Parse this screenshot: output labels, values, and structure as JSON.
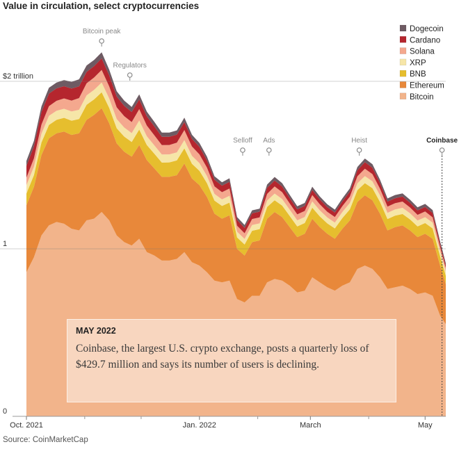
{
  "title": "Value in circulation, select cryptocurrencies",
  "source": "Source: CoinMarketCap",
  "callout": {
    "date": "MAY 2022",
    "text": "Coinbase, the largest U.S. crypto exchange, posts a quarterly loss of $429.7 million and says its number of users is declining."
  },
  "chart_data": {
    "type": "area",
    "stacked": true,
    "title": "Value in circulation, select cryptocurrencies",
    "ylabel": "",
    "y_unit": "trillion dollars",
    "ylim": [
      0,
      2.4
    ],
    "y_ticks": [
      {
        "value": 0,
        "label": "0"
      },
      {
        "value": 1,
        "label": "1"
      },
      {
        "value": 2,
        "label": "$2 trillion"
      }
    ],
    "x_ticks": [
      {
        "value": "2021-10-01",
        "label": "Oct. 2021"
      },
      {
        "value": "2022-01-01",
        "label": "Jan. 2022"
      },
      {
        "value": "2022-03-01",
        "label": "March"
      },
      {
        "value": "2022-05-01",
        "label": "May"
      }
    ],
    "x_minor_ticks": [
      "2021-11-01",
      "2021-12-01",
      "2022-02-01",
      "2022-04-01"
    ],
    "xlim": [
      "2021-10-01",
      "2022-05-12"
    ],
    "x": [
      "2021-10-01",
      "2021-10-05",
      "2021-10-09",
      "2021-10-13",
      "2021-10-17",
      "2021-10-21",
      "2021-10-25",
      "2021-10-29",
      "2021-11-02",
      "2021-11-06",
      "2021-11-10",
      "2021-11-14",
      "2021-11-18",
      "2021-11-22",
      "2021-11-26",
      "2021-11-30",
      "2021-12-04",
      "2021-12-08",
      "2021-12-12",
      "2021-12-16",
      "2021-12-20",
      "2021-12-24",
      "2021-12-28",
      "2022-01-01",
      "2022-01-05",
      "2022-01-09",
      "2022-01-13",
      "2022-01-17",
      "2022-01-21",
      "2022-01-25",
      "2022-01-29",
      "2022-02-02",
      "2022-02-06",
      "2022-02-10",
      "2022-02-14",
      "2022-02-18",
      "2022-02-22",
      "2022-02-26",
      "2022-03-02",
      "2022-03-06",
      "2022-03-10",
      "2022-03-14",
      "2022-03-18",
      "2022-03-22",
      "2022-03-26",
      "2022-03-30",
      "2022-04-03",
      "2022-04-07",
      "2022-04-11",
      "2022-04-15",
      "2022-04-19",
      "2022-04-23",
      "2022-04-27",
      "2022-05-01",
      "2022-05-05",
      "2022-05-09",
      "2022-05-12"
    ],
    "series": [
      {
        "name": "Bitcoin",
        "color": "#f2b48b",
        "values": [
          0.86,
          0.95,
          1.08,
          1.14,
          1.16,
          1.15,
          1.12,
          1.11,
          1.17,
          1.18,
          1.22,
          1.17,
          1.08,
          1.04,
          1.02,
          1.06,
          0.98,
          0.96,
          0.93,
          0.93,
          0.94,
          0.98,
          0.92,
          0.9,
          0.86,
          0.81,
          0.8,
          0.81,
          0.7,
          0.68,
          0.72,
          0.72,
          0.8,
          0.82,
          0.81,
          0.78,
          0.74,
          0.75,
          0.83,
          0.8,
          0.77,
          0.75,
          0.78,
          0.8,
          0.88,
          0.9,
          0.88,
          0.83,
          0.76,
          0.77,
          0.78,
          0.76,
          0.73,
          0.74,
          0.72,
          0.6,
          0.55
        ]
      },
      {
        "name": "Ethereum",
        "color": "#e8883a",
        "values": [
          0.4,
          0.42,
          0.48,
          0.52,
          0.53,
          0.55,
          0.56,
          0.58,
          0.6,
          0.62,
          0.62,
          0.58,
          0.55,
          0.54,
          0.53,
          0.56,
          0.55,
          0.52,
          0.5,
          0.5,
          0.5,
          0.53,
          0.5,
          0.48,
          0.45,
          0.4,
          0.38,
          0.39,
          0.3,
          0.28,
          0.32,
          0.33,
          0.38,
          0.4,
          0.38,
          0.35,
          0.33,
          0.34,
          0.35,
          0.33,
          0.32,
          0.31,
          0.34,
          0.37,
          0.4,
          0.42,
          0.41,
          0.38,
          0.35,
          0.36,
          0.36,
          0.35,
          0.34,
          0.35,
          0.34,
          0.3,
          0.24
        ]
      },
      {
        "name": "BNB",
        "color": "#e6be2e",
        "values": [
          0.07,
          0.07,
          0.075,
          0.08,
          0.08,
          0.082,
          0.085,
          0.085,
          0.09,
          0.092,
          0.095,
          0.092,
          0.09,
          0.09,
          0.088,
          0.092,
          0.09,
          0.088,
          0.085,
          0.086,
          0.088,
          0.09,
          0.088,
          0.086,
          0.082,
          0.078,
          0.076,
          0.076,
          0.068,
          0.066,
          0.068,
          0.068,
          0.07,
          0.07,
          0.068,
          0.066,
          0.064,
          0.064,
          0.066,
          0.064,
          0.062,
          0.062,
          0.064,
          0.066,
          0.07,
          0.072,
          0.072,
          0.07,
          0.068,
          0.068,
          0.068,
          0.066,
          0.064,
          0.064,
          0.062,
          0.055,
          0.05
        ]
      },
      {
        "name": "XRP",
        "color": "#f6e6a8",
        "values": [
          0.05,
          0.05,
          0.052,
          0.054,
          0.054,
          0.054,
          0.055,
          0.055,
          0.056,
          0.057,
          0.058,
          0.056,
          0.055,
          0.054,
          0.053,
          0.054,
          0.052,
          0.05,
          0.048,
          0.048,
          0.048,
          0.049,
          0.047,
          0.045,
          0.043,
          0.04,
          0.039,
          0.04,
          0.034,
          0.033,
          0.034,
          0.034,
          0.038,
          0.04,
          0.039,
          0.037,
          0.036,
          0.036,
          0.037,
          0.036,
          0.035,
          0.035,
          0.036,
          0.038,
          0.041,
          0.042,
          0.041,
          0.039,
          0.037,
          0.037,
          0.037,
          0.036,
          0.035,
          0.035,
          0.034,
          0.03,
          0.025
        ]
      },
      {
        "name": "Solana",
        "color": "#f4a88e",
        "values": [
          0.045,
          0.05,
          0.055,
          0.058,
          0.06,
          0.062,
          0.065,
          0.07,
          0.072,
          0.074,
          0.075,
          0.072,
          0.07,
          0.068,
          0.066,
          0.068,
          0.064,
          0.06,
          0.056,
          0.056,
          0.058,
          0.06,
          0.056,
          0.053,
          0.05,
          0.045,
          0.043,
          0.044,
          0.036,
          0.034,
          0.036,
          0.036,
          0.04,
          0.042,
          0.041,
          0.038,
          0.036,
          0.036,
          0.038,
          0.036,
          0.034,
          0.033,
          0.035,
          0.038,
          0.042,
          0.044,
          0.043,
          0.04,
          0.037,
          0.037,
          0.037,
          0.035,
          0.034,
          0.034,
          0.032,
          0.025,
          0.02
        ]
      },
      {
        "name": "Cardano",
        "color": "#b5262e",
        "values": [
          0.07,
          0.072,
          0.074,
          0.075,
          0.074,
          0.073,
          0.072,
          0.07,
          0.068,
          0.068,
          0.069,
          0.066,
          0.064,
          0.062,
          0.06,
          0.058,
          0.055,
          0.053,
          0.05,
          0.049,
          0.048,
          0.048,
          0.046,
          0.045,
          0.043,
          0.04,
          0.039,
          0.04,
          0.034,
          0.032,
          0.034,
          0.034,
          0.036,
          0.036,
          0.034,
          0.032,
          0.03,
          0.03,
          0.031,
          0.029,
          0.028,
          0.027,
          0.028,
          0.03,
          0.036,
          0.04,
          0.038,
          0.034,
          0.03,
          0.03,
          0.03,
          0.028,
          0.027,
          0.027,
          0.026,
          0.02,
          0.017
        ]
      },
      {
        "name": "Dogecoin",
        "color": "#6e5b63",
        "values": [
          0.03,
          0.032,
          0.034,
          0.035,
          0.035,
          0.036,
          0.04,
          0.042,
          0.038,
          0.037,
          0.036,
          0.034,
          0.032,
          0.031,
          0.03,
          0.03,
          0.028,
          0.027,
          0.025,
          0.025,
          0.025,
          0.026,
          0.024,
          0.023,
          0.022,
          0.02,
          0.02,
          0.021,
          0.018,
          0.017,
          0.018,
          0.018,
          0.02,
          0.021,
          0.02,
          0.019,
          0.018,
          0.018,
          0.019,
          0.018,
          0.017,
          0.017,
          0.018,
          0.019,
          0.02,
          0.021,
          0.021,
          0.02,
          0.019,
          0.019,
          0.019,
          0.018,
          0.018,
          0.018,
          0.017,
          0.014,
          0.012
        ]
      }
    ],
    "annotations": [
      {
        "date": "2021-11-10",
        "label": "Bitcoin peak",
        "bold": false
      },
      {
        "date": "2021-11-25",
        "label": "Regulators",
        "bold": false
      },
      {
        "date": "2022-01-24",
        "label": "Selloff",
        "bold": false
      },
      {
        "date": "2022-02-07",
        "label": "Ads",
        "bold": false
      },
      {
        "date": "2022-03-27",
        "label": "Heist",
        "bold": false
      },
      {
        "date": "2022-05-10",
        "label": "Coinbase",
        "bold": true
      }
    ],
    "legend_placement": "top-right",
    "grid": true
  }
}
